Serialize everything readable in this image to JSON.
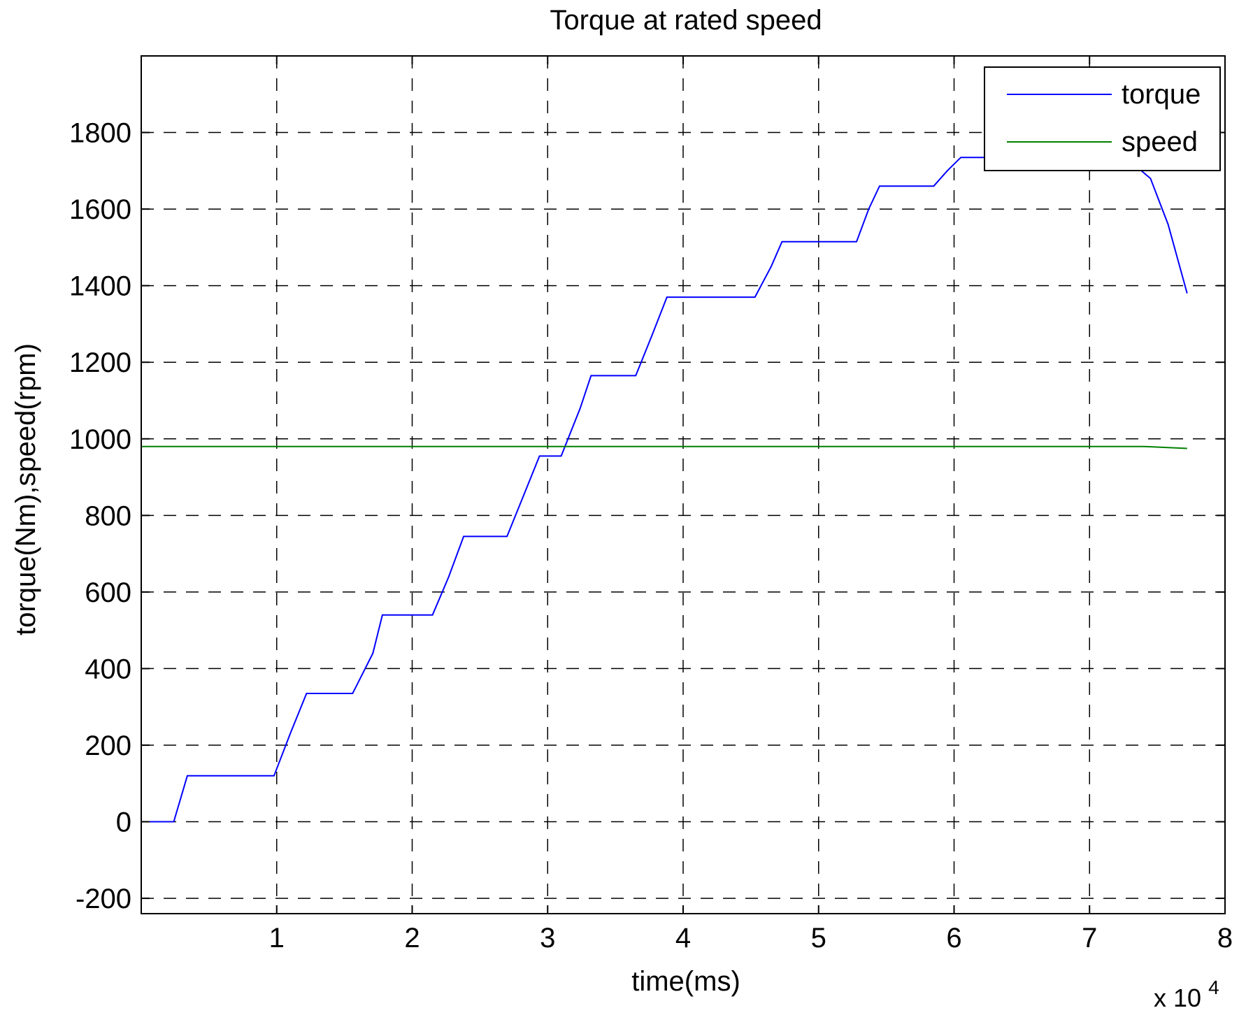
{
  "chart_data": {
    "type": "line",
    "title": "Torque at rated speed",
    "xlabel": "time(ms)",
    "ylabel": "torque(Nm),speed(rpm)",
    "x_multiplier_label": "x 10",
    "x_multiplier_exponent": "4",
    "xlim": [
      0,
      80000
    ],
    "ylim": [
      -240,
      2000
    ],
    "x_ticks": [
      10000,
      20000,
      30000,
      40000,
      50000,
      60000,
      70000,
      80000
    ],
    "x_tick_labels": [
      "1",
      "2",
      "3",
      "4",
      "5",
      "6",
      "7",
      "8"
    ],
    "y_ticks": [
      -200,
      0,
      200,
      400,
      600,
      800,
      1000,
      1200,
      1400,
      1600,
      1800
    ],
    "y_tick_labels": [
      "-200",
      "0",
      "200",
      "400",
      "600",
      "800",
      "1000",
      "1200",
      "1400",
      "1600",
      "1800"
    ],
    "grid": true,
    "grid_style": "dashed",
    "legend_position": "top-right",
    "series": [
      {
        "name": "torque",
        "color": "#0000ff",
        "x": [
          0,
          2400,
          3400,
          9800,
          11000,
          12200,
          15600,
          17100,
          17800,
          21500,
          22700,
          23800,
          27000,
          28200,
          29400,
          31000,
          32400,
          33200,
          36500,
          37700,
          38800,
          45300,
          46500,
          47300,
          52800,
          53700,
          54500,
          58500,
          59500,
          60500,
          65500,
          66000,
          67500,
          69000,
          70500,
          72500,
          74500,
          75800,
          77200
        ],
        "y": [
          0,
          0,
          120,
          120,
          230,
          335,
          335,
          440,
          540,
          540,
          640,
          745,
          745,
          850,
          955,
          955,
          1080,
          1165,
          1165,
          1270,
          1370,
          1370,
          1450,
          1515,
          1515,
          1600,
          1660,
          1660,
          1700,
          1735,
          1735,
          1750,
          1740,
          1710,
          1740,
          1740,
          1680,
          1560,
          1380
        ]
      },
      {
        "name": "speed",
        "color": "#008000",
        "x": [
          0,
          74000,
          77200
        ],
        "y": [
          980,
          980,
          975
        ]
      }
    ]
  }
}
